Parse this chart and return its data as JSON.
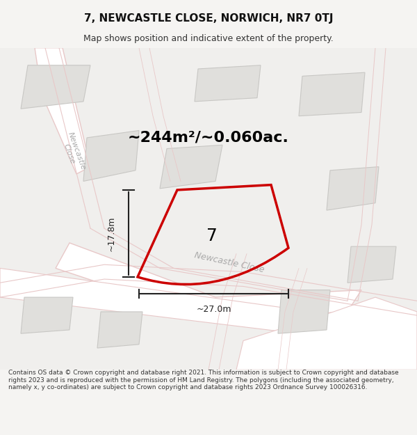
{
  "title": "7, NEWCASTLE CLOSE, NORWICH, NR7 0TJ",
  "subtitle": "Map shows position and indicative extent of the property.",
  "area_text": "~244m²/~0.060ac.",
  "plot_number": "7",
  "dim_height": "~17.8m",
  "dim_width": "~27.0m",
  "footer_text": "Contains OS data © Crown copyright and database right 2021. This information is subject to Crown copyright and database rights 2023 and is reproduced with the permission of HM Land Registry. The polygons (including the associated geometry, namely x, y co-ordinates) are subject to Crown copyright and database rights 2023 Ordnance Survey 100026316.",
  "bg_color": "#f5f4f2",
  "map_bg": "#f0efed",
  "building_color": "#e0dfdc",
  "building_stroke": "#c8c7c4",
  "road_color": "#ffffff",
  "road_stroke": "#e8c8c8",
  "plot_stroke": "#cc0000",
  "plot_fill": "none",
  "dim_color": "#222222",
  "street_label_color": "#aaaaaa",
  "title_color": "#111111",
  "subtitle_color": "#333333",
  "footer_color": "#333333"
}
